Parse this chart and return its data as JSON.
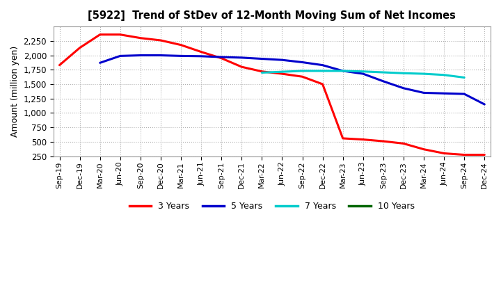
{
  "title": "[5922]  Trend of StDev of 12-Month Moving Sum of Net Incomes",
  "ylabel": "Amount (million yen)",
  "background_color": "#ffffff",
  "grid_color": "#b0b0b0",
  "x_labels": [
    "Sep-19",
    "Dec-19",
    "Mar-20",
    "Jun-20",
    "Sep-20",
    "Dec-20",
    "Mar-21",
    "Jun-21",
    "Sep-21",
    "Dec-21",
    "Mar-22",
    "Jun-22",
    "Sep-22",
    "Dec-22",
    "Mar-23",
    "Jun-23",
    "Sep-23",
    "Dec-23",
    "Mar-24",
    "Jun-24",
    "Sep-24",
    "Dec-24"
  ],
  "ylim": [
    250,
    2500
  ],
  "yticks": [
    250,
    500,
    750,
    1000,
    1250,
    1500,
    1750,
    2000,
    2250
  ],
  "series": {
    "3 Years": {
      "color": "#ff0000",
      "data": [
        1830,
        2130,
        2360,
        2360,
        2300,
        2260,
        2180,
        2060,
        1950,
        1800,
        1720,
        1680,
        1630,
        1500,
        560,
        540,
        510,
        470,
        370,
        300,
        275,
        275
      ]
    },
    "5 Years": {
      "color": "#0000cc",
      "data": [
        null,
        null,
        1870,
        1990,
        2000,
        2000,
        1990,
        1985,
        1970,
        1960,
        1940,
        1920,
        1880,
        1830,
        1730,
        1680,
        1550,
        1430,
        1350,
        1340,
        1330,
        1150
      ]
    },
    "7 Years": {
      "color": "#00cccc",
      "data": [
        null,
        null,
        null,
        null,
        null,
        null,
        null,
        null,
        null,
        null,
        1700,
        1715,
        1730,
        1730,
        1730,
        1720,
        1705,
        1690,
        1680,
        1660,
        1615,
        null
      ]
    },
    "10 Years": {
      "color": "#006600",
      "data": [
        null,
        null,
        null,
        null,
        null,
        null,
        null,
        null,
        null,
        null,
        null,
        null,
        null,
        null,
        null,
        null,
        null,
        null,
        null,
        null,
        null,
        null
      ]
    }
  },
  "legend": {
    "labels": [
      "3 Years",
      "5 Years",
      "7 Years",
      "10 Years"
    ],
    "colors": [
      "#ff0000",
      "#0000cc",
      "#00cccc",
      "#006600"
    ]
  }
}
